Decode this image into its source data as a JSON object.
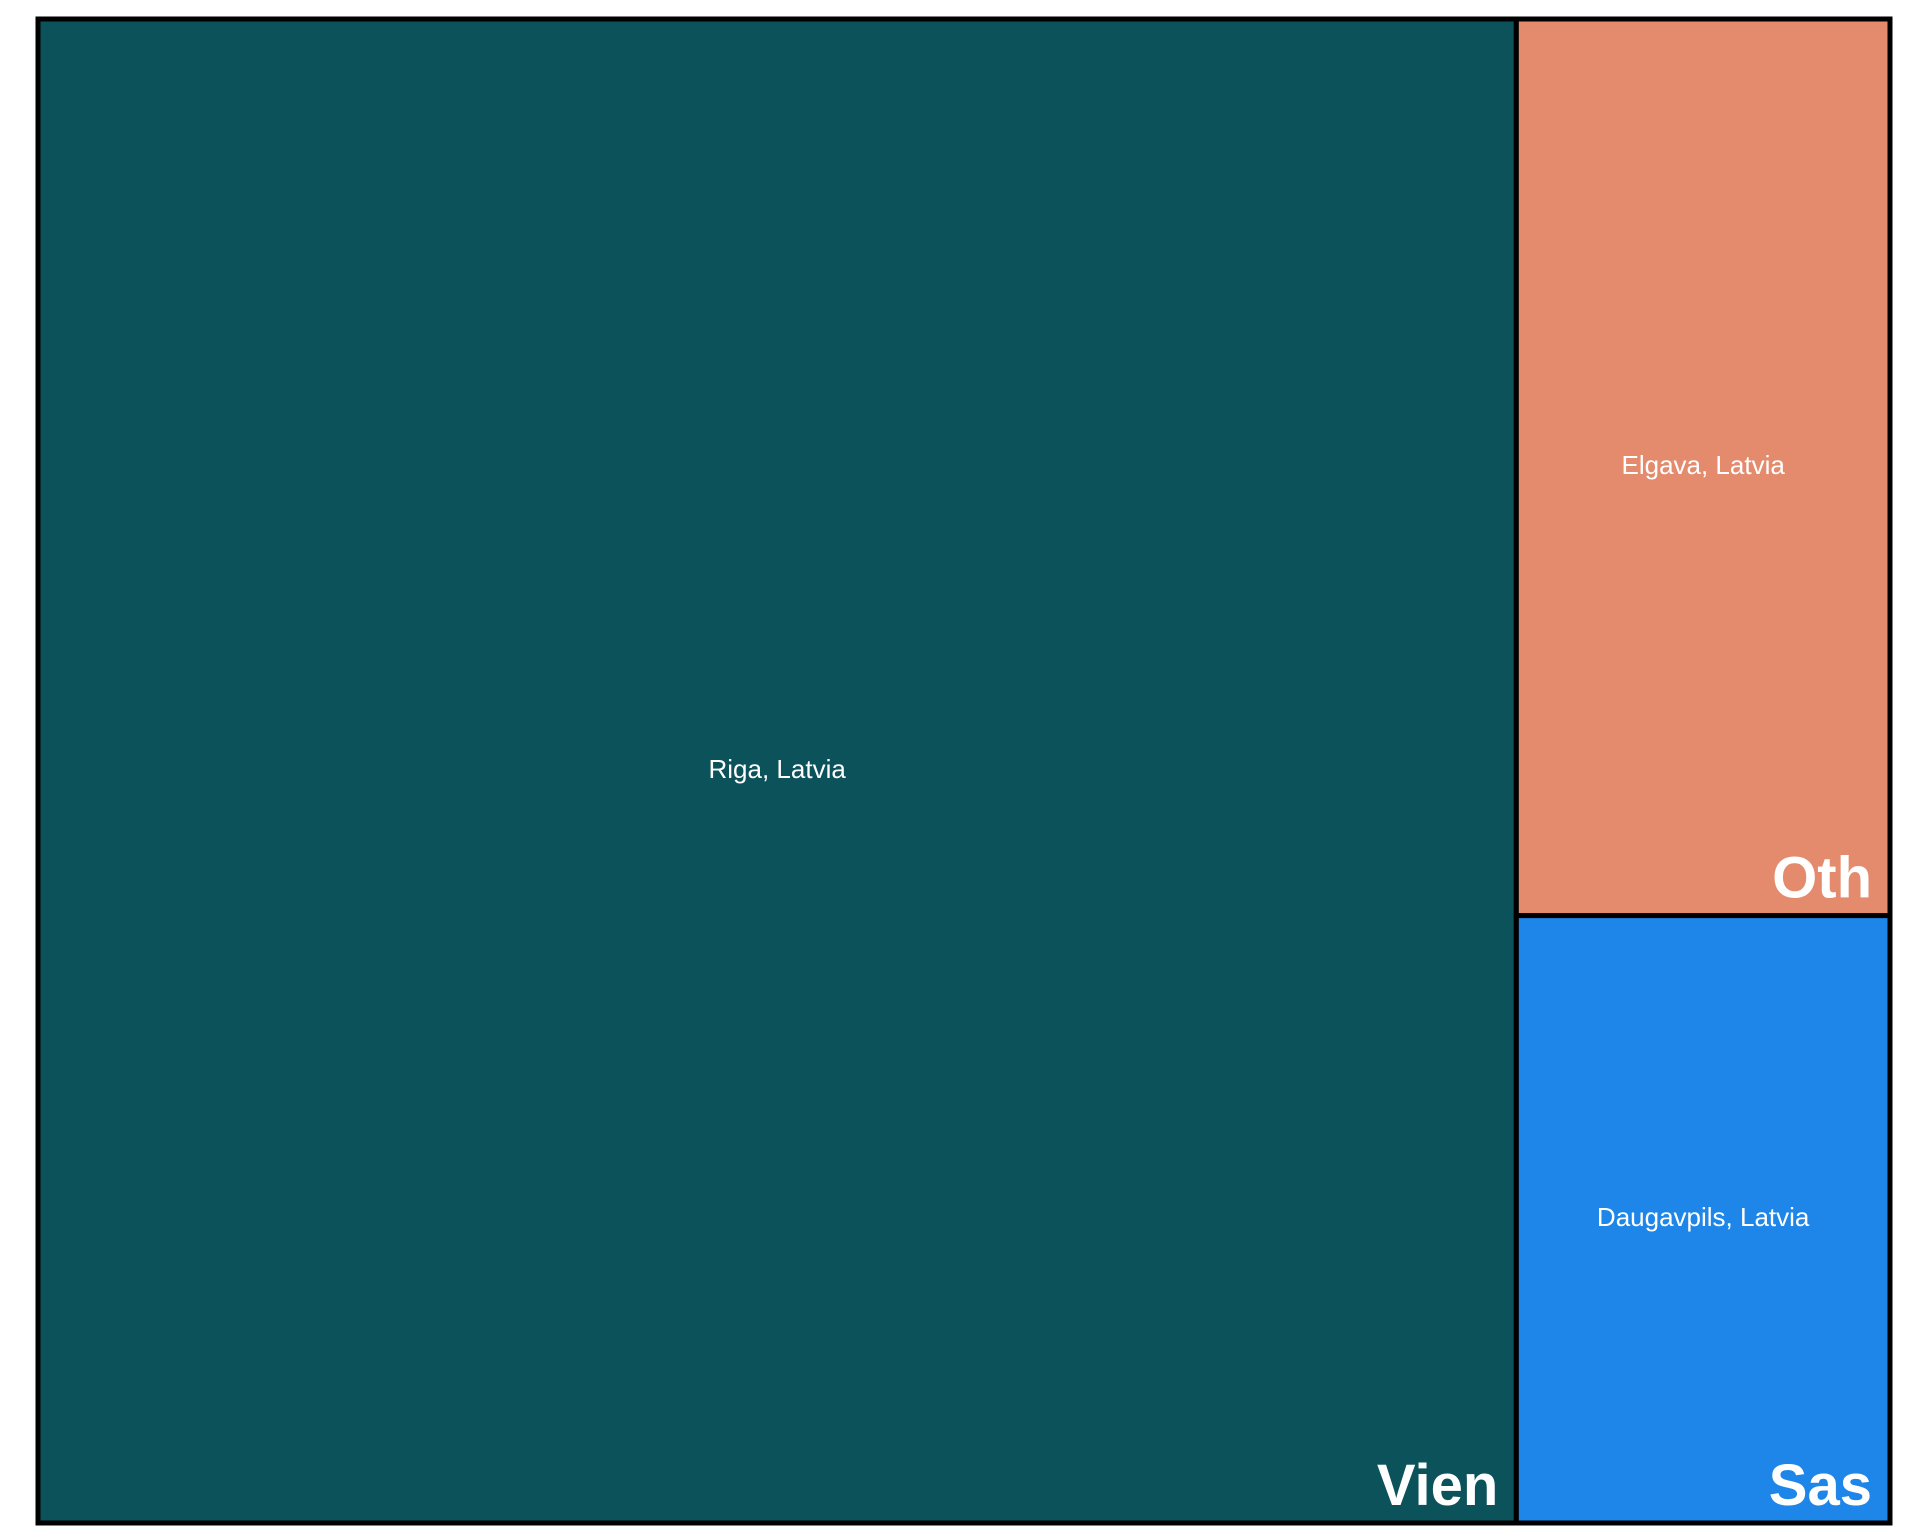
{
  "chart_data": {
    "type": "treemap",
    "title": "",
    "groups": [
      {
        "name": "Vien",
        "color": "#0b525b",
        "leaves": [
          {
            "label": "Riga, Latvia",
            "value": 1440000
          }
        ]
      },
      {
        "name": "Oth",
        "color": "#e48b6e",
        "leaves": [
          {
            "label": "Elgava, Latvia",
            "value": 217000
          }
        ]
      },
      {
        "name": "Sas",
        "color": "#1e86e8",
        "leaves": [
          {
            "label": "Daugavpils, Latvia",
            "value": 147000
          }
        ]
      }
    ],
    "border_color": "#000000"
  }
}
